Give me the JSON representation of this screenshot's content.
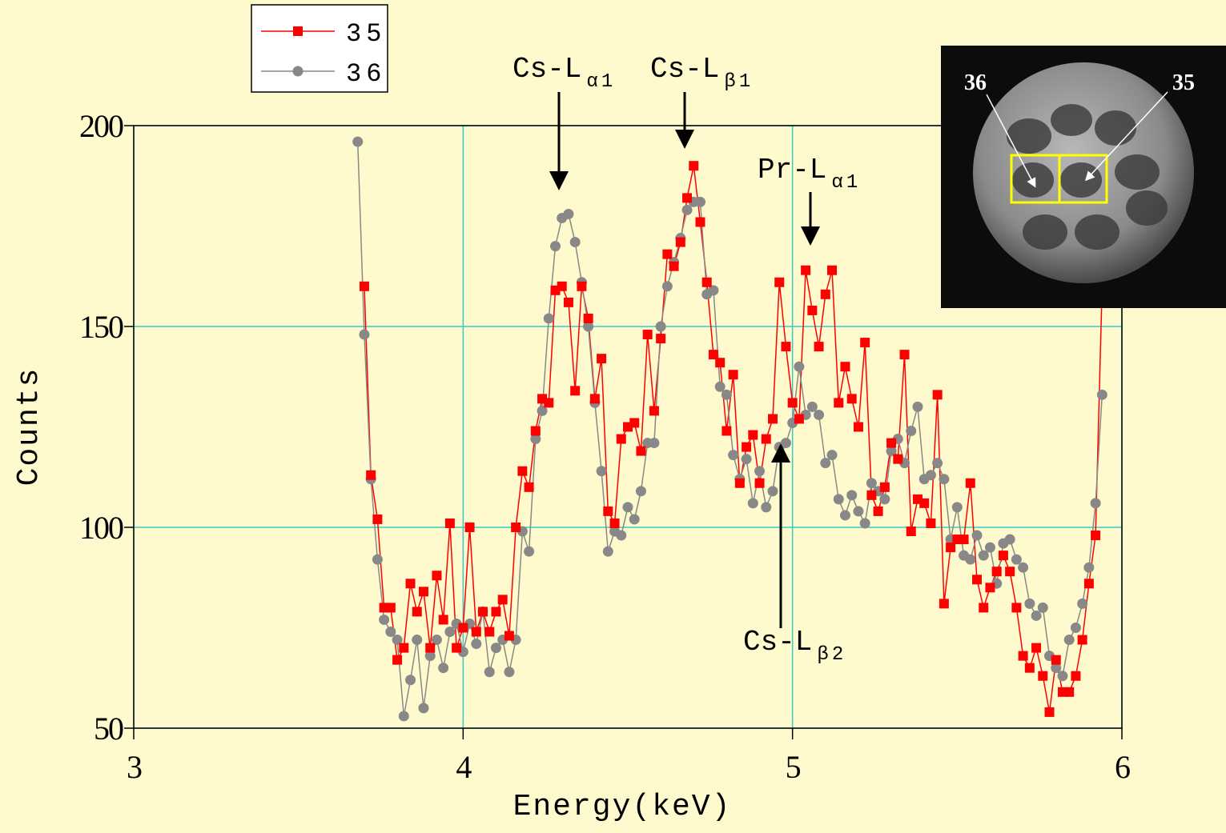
{
  "chart_data": {
    "type": "line",
    "xlabel": "Energy(keV)",
    "ylabel": "Counts",
    "xlim": [
      3,
      6
    ],
    "ylim": [
      50,
      200
    ],
    "xticks": [
      3,
      4,
      5,
      6
    ],
    "yticks": [
      50,
      100,
      150,
      200
    ],
    "grid": true,
    "x": [
      3.68,
      3.7,
      3.72,
      3.74,
      3.76,
      3.78,
      3.8,
      3.82,
      3.84,
      3.86,
      3.88,
      3.9,
      3.92,
      3.94,
      3.96,
      3.98,
      4.0,
      4.02,
      4.04,
      4.06,
      4.08,
      4.1,
      4.12,
      4.14,
      4.16,
      4.18,
      4.2,
      4.22,
      4.24,
      4.26,
      4.28,
      4.3,
      4.32,
      4.34,
      4.36,
      4.38,
      4.4,
      4.42,
      4.44,
      4.46,
      4.48,
      4.5,
      4.52,
      4.54,
      4.56,
      4.58,
      4.6,
      4.62,
      4.64,
      4.66,
      4.68,
      4.7,
      4.72,
      4.74,
      4.76,
      4.78,
      4.8,
      4.82,
      4.84,
      4.86,
      4.88,
      4.9,
      4.92,
      4.94,
      4.96,
      4.98,
      5.0,
      5.02,
      5.04,
      5.06,
      5.08,
      5.1,
      5.12,
      5.14,
      5.16,
      5.18,
      5.2,
      5.22,
      5.24,
      5.26,
      5.28,
      5.3,
      5.32,
      5.34,
      5.36,
      5.38,
      5.4,
      5.42,
      5.44,
      5.46,
      5.48,
      5.5,
      5.52,
      5.54,
      5.56,
      5.58,
      5.6,
      5.62,
      5.64,
      5.66,
      5.68,
      5.7,
      5.72,
      5.74,
      5.76,
      5.78,
      5.8,
      5.82,
      5.84,
      5.86,
      5.88,
      5.9,
      5.92,
      5.94
    ],
    "series": [
      {
        "name": "35",
        "color": "#ff0000",
        "marker": "square",
        "values": [
          null,
          160,
          113,
          102,
          80,
          80,
          67,
          70,
          86,
          79,
          84,
          70,
          88,
          77,
          101,
          70,
          75,
          100,
          74,
          79,
          74,
          79,
          82,
          73,
          100,
          114,
          110,
          124,
          132,
          131,
          159,
          160,
          156,
          134,
          160,
          152,
          132,
          142,
          104,
          101,
          122,
          125,
          126,
          119,
          148,
          129,
          147,
          168,
          165,
          171,
          182,
          190,
          176,
          161,
          143,
          141,
          124,
          138,
          111,
          120,
          123,
          111,
          122,
          127,
          161,
          145,
          131,
          127,
          164,
          154,
          145,
          158,
          164,
          131,
          140,
          132,
          125,
          146,
          108,
          104,
          110,
          121,
          117,
          143,
          99,
          107,
          106,
          101,
          133,
          81,
          95,
          97,
          97,
          111,
          87,
          80,
          85,
          89,
          93,
          89,
          80,
          68,
          65,
          70,
          63,
          54,
          67,
          59,
          59,
          63,
          72,
          86,
          98,
          160
        ]
      },
      {
        "name": "36",
        "color": "#888888",
        "marker": "circle",
        "values": [
          196,
          148,
          112,
          92,
          77,
          74,
          72,
          53,
          62,
          72,
          55,
          68,
          72,
          65,
          74,
          76,
          69,
          76,
          71,
          79,
          64,
          70,
          72,
          64,
          72,
          99,
          94,
          122,
          129,
          152,
          170,
          177,
          178,
          171,
          161,
          150,
          131,
          114,
          94,
          99,
          98,
          105,
          102,
          109,
          121,
          121,
          150,
          160,
          166,
          172,
          179,
          181,
          181,
          158,
          159,
          135,
          133,
          118,
          112,
          117,
          106,
          114,
          105,
          109,
          120,
          121,
          126,
          140,
          128,
          130,
          128,
          116,
          118,
          107,
          103,
          108,
          104,
          101,
          111,
          109,
          107,
          119,
          122,
          116,
          124,
          130,
          112,
          113,
          116,
          112,
          97,
          105,
          93,
          92,
          98,
          93,
          95,
          86,
          96,
          97,
          92,
          90,
          81,
          78,
          80,
          68,
          65,
          63,
          72,
          75,
          81,
          90,
          106,
          133
        ]
      }
    ],
    "annotations": [
      {
        "text": "Cs-L",
        "sub": "α1"
      },
      {
        "text": "Cs-L",
        "sub": "β1"
      },
      {
        "text": "Pr-L",
        "sub": "α1"
      },
      {
        "text": "Cs-L",
        "sub": "β2"
      }
    ],
    "inset": {
      "labels": [
        "36",
        "35"
      ]
    }
  }
}
